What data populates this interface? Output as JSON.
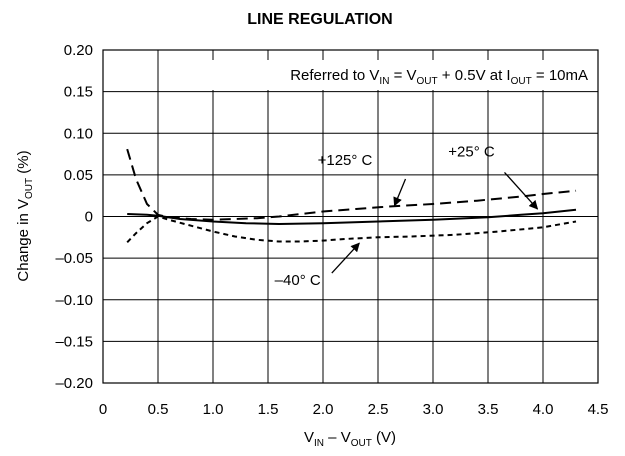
{
  "chart_data": {
    "type": "line",
    "title": "LINE REGULATION",
    "xlabel": {
      "parts": [
        "V",
        "IN",
        " – V",
        "OUT",
        " (V)"
      ]
    },
    "ylabel": {
      "parts": [
        "Change in V",
        "OUT",
        " (%)"
      ]
    },
    "xlim": [
      0,
      4.5
    ],
    "ylim": [
      -0.2,
      0.2
    ],
    "grid": true,
    "x_ticks": [
      "0",
      "0.5",
      "1.0",
      "1.5",
      "2.0",
      "2.5",
      "3.0",
      "3.5",
      "4.0",
      "4.5"
    ],
    "y_ticks": [
      "0.20",
      "0.15",
      "0.10",
      "0.05",
      "0",
      "–0.05",
      "–0.10",
      "–0.15",
      "–0.20"
    ],
    "annotation": {
      "parts": [
        "Referred to V",
        "IN",
        " = V",
        "OUT",
        " + 0.5V at I",
        "OUT",
        " = 10mA"
      ]
    },
    "series": [
      {
        "name": "+125° C",
        "style": "long-dash",
        "points": [
          [
            0.22,
            0.081
          ],
          [
            0.3,
            0.045
          ],
          [
            0.4,
            0.015
          ],
          [
            0.5,
            0.002
          ],
          [
            0.6,
            -0.001
          ],
          [
            0.8,
            -0.003
          ],
          [
            1.0,
            -0.004
          ],
          [
            1.2,
            -0.003
          ],
          [
            1.4,
            -0.002
          ],
          [
            1.6,
            0.0
          ],
          [
            1.8,
            0.003
          ],
          [
            2.0,
            0.006
          ],
          [
            2.3,
            0.009
          ],
          [
            2.6,
            0.012
          ],
          [
            3.0,
            0.015
          ],
          [
            3.4,
            0.019
          ],
          [
            3.8,
            0.024
          ],
          [
            4.0,
            0.027
          ],
          [
            4.3,
            0.031
          ]
        ]
      },
      {
        "name": "+25° C",
        "style": "solid",
        "points": [
          [
            0.22,
            0.003
          ],
          [
            0.4,
            0.002
          ],
          [
            0.5,
            0.001
          ],
          [
            0.7,
            -0.003
          ],
          [
            1.0,
            -0.006
          ],
          [
            1.3,
            -0.008
          ],
          [
            1.6,
            -0.009
          ],
          [
            2.0,
            -0.008
          ],
          [
            2.5,
            -0.006
          ],
          [
            3.0,
            -0.004
          ],
          [
            3.5,
            -0.001
          ],
          [
            3.8,
            0.002
          ],
          [
            4.0,
            0.004
          ],
          [
            4.3,
            0.008
          ]
        ]
      },
      {
        "name": "–40° C",
        "style": "short-dash",
        "points": [
          [
            0.22,
            -0.031
          ],
          [
            0.3,
            -0.02
          ],
          [
            0.4,
            -0.008
          ],
          [
            0.5,
            0.0
          ],
          [
            0.6,
            -0.004
          ],
          [
            0.8,
            -0.011
          ],
          [
            1.0,
            -0.018
          ],
          [
            1.2,
            -0.024
          ],
          [
            1.4,
            -0.028
          ],
          [
            1.6,
            -0.03
          ],
          [
            1.8,
            -0.03
          ],
          [
            2.0,
            -0.029
          ],
          [
            2.2,
            -0.027
          ],
          [
            2.5,
            -0.025
          ],
          [
            2.8,
            -0.024
          ],
          [
            3.2,
            -0.022
          ],
          [
            3.6,
            -0.018
          ],
          [
            4.0,
            -0.013
          ],
          [
            4.3,
            -0.006
          ]
        ]
      }
    ],
    "callouts": [
      {
        "series": "+125° C",
        "text": "+125° C",
        "text_at": [
          2.2,
          0.062
        ],
        "arrow_from": [
          2.75,
          0.045
        ],
        "arrow_to": [
          2.65,
          0.013
        ]
      },
      {
        "series": "+25° C",
        "text": "+25° C",
        "text_at": [
          3.35,
          0.072
        ],
        "arrow_from": [
          3.65,
          0.053
        ],
        "arrow_to": [
          3.95,
          0.009
        ]
      },
      {
        "series": "–40° C",
        "text": "–40° C",
        "text_at": [
          1.77,
          -0.082
        ],
        "arrow_from": [
          2.08,
          -0.068
        ],
        "arrow_to": [
          2.33,
          -0.032
        ]
      }
    ]
  }
}
